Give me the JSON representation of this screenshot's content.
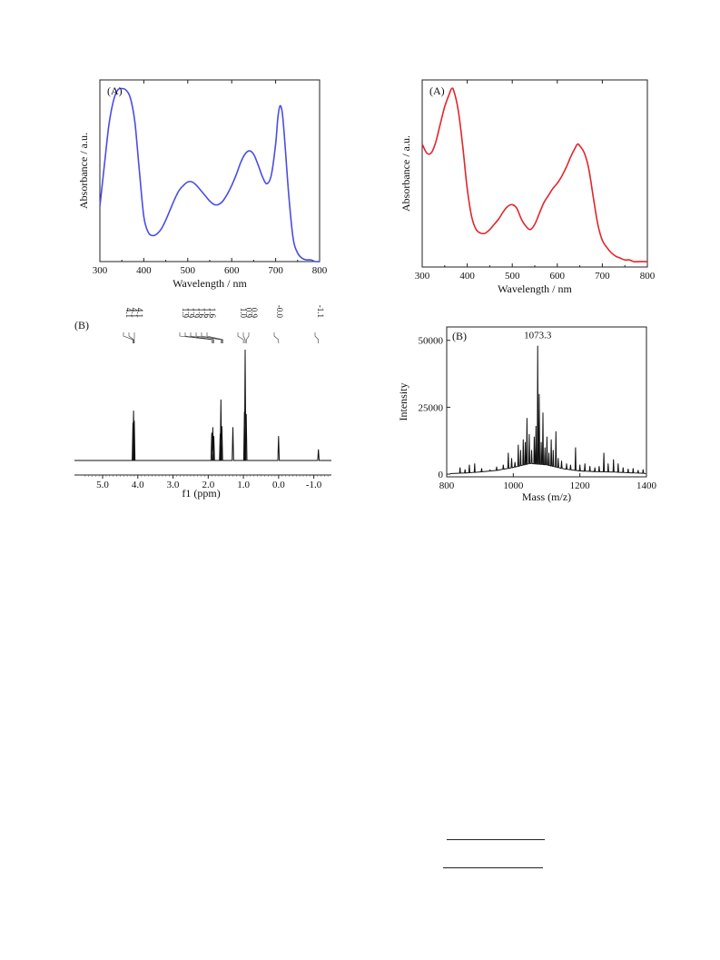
{
  "chart_data": [
    {
      "type": "line",
      "panel_label": "(A)",
      "xlabel": "Wavelength / nm",
      "ylabel": "Absorbance / a.u.",
      "xlim": [
        300,
        800
      ],
      "ylim": [
        0,
        1.05
      ],
      "xticks": [
        300,
        400,
        500,
        600,
        700,
        800
      ],
      "y_tick_labels_shown": false,
      "grid": false,
      "color": "#4b4ce6",
      "series": [
        {
          "x": [
            300,
            310,
            320,
            330,
            340,
            350,
            360,
            370,
            380,
            390,
            400,
            410,
            420,
            430,
            440,
            450,
            460,
            470,
            480,
            490,
            500,
            510,
            520,
            530,
            540,
            550,
            560,
            570,
            580,
            590,
            600,
            610,
            620,
            630,
            640,
            650,
            660,
            670,
            680,
            690,
            700,
            705,
            710,
            715,
            720,
            730,
            740,
            750,
            760,
            770,
            780,
            790,
            800
          ],
          "y": [
            0.32,
            0.55,
            0.78,
            0.92,
            0.99,
            1.0,
            0.99,
            0.94,
            0.8,
            0.52,
            0.26,
            0.17,
            0.15,
            0.16,
            0.19,
            0.24,
            0.3,
            0.36,
            0.41,
            0.44,
            0.46,
            0.46,
            0.44,
            0.41,
            0.38,
            0.35,
            0.33,
            0.33,
            0.35,
            0.39,
            0.44,
            0.5,
            0.57,
            0.62,
            0.64,
            0.62,
            0.56,
            0.49,
            0.45,
            0.5,
            0.68,
            0.83,
            0.9,
            0.86,
            0.72,
            0.38,
            0.13,
            0.05,
            0.02,
            0.01,
            0.01,
            0.0,
            0.0
          ]
        }
      ]
    },
    {
      "type": "line",
      "panel_label": "(A)",
      "xlabel": "Wavelength / nm",
      "ylabel": "Absorbance / a.u.",
      "xlim": [
        300,
        800
      ],
      "ylim": [
        0,
        1.05
      ],
      "xticks": [
        300,
        400,
        500,
        600,
        700,
        800
      ],
      "y_tick_labels_shown": false,
      "grid": false,
      "color": "#e2252b",
      "series": [
        {
          "x": [
            300,
            310,
            320,
            330,
            340,
            350,
            360,
            365,
            370,
            380,
            390,
            400,
            410,
            420,
            430,
            440,
            450,
            460,
            470,
            480,
            490,
            500,
            510,
            520,
            530,
            540,
            550,
            560,
            570,
            580,
            590,
            600,
            610,
            620,
            630,
            640,
            645,
            650,
            660,
            670,
            680,
            690,
            700,
            710,
            720,
            730,
            740,
            750,
            760,
            770,
            780,
            790,
            800
          ],
          "y": [
            0.69,
            0.64,
            0.64,
            0.7,
            0.8,
            0.9,
            0.97,
            1.0,
            0.99,
            0.88,
            0.68,
            0.44,
            0.28,
            0.21,
            0.19,
            0.19,
            0.21,
            0.24,
            0.27,
            0.31,
            0.34,
            0.35,
            0.33,
            0.27,
            0.23,
            0.21,
            0.24,
            0.3,
            0.36,
            0.4,
            0.44,
            0.47,
            0.51,
            0.56,
            0.62,
            0.67,
            0.69,
            0.68,
            0.64,
            0.55,
            0.39,
            0.24,
            0.15,
            0.11,
            0.08,
            0.06,
            0.05,
            0.04,
            0.04,
            0.03,
            0.03,
            0.03,
            0.03
          ]
        }
      ]
    },
    {
      "type": "line",
      "panel_label": "(B)",
      "xlabel": "f1 (ppm)",
      "xlim": [
        5.8,
        -1.5
      ],
      "xticks": [
        5.0,
        4.0,
        3.0,
        2.0,
        1.0,
        0.0,
        -1.0
      ],
      "xtick_labels": [
        "5.0",
        "4.0",
        "3.0",
        "2.0",
        "1.0",
        "0.0",
        "-1.0"
      ],
      "reversed_x": true,
      "grid": false,
      "color": "#111111",
      "peak_labels": [
        {
          "text": "4.1",
          "ppm": 4.14
        },
        {
          "text": "4.1",
          "ppm": 4.12
        },
        {
          "text": "4.1",
          "ppm": 4.1
        },
        {
          "text": "1.9",
          "ppm": 1.9
        },
        {
          "text": "1.9",
          "ppm": 1.87
        },
        {
          "text": "1.9",
          "ppm": 1.84
        },
        {
          "text": "1.6",
          "ppm": 1.64
        },
        {
          "text": "1.6",
          "ppm": 1.61
        },
        {
          "text": "1.6",
          "ppm": 1.58
        },
        {
          "text": "1.0",
          "ppm": 1.0
        },
        {
          "text": "0.9",
          "ppm": 0.95
        },
        {
          "text": "0.9",
          "ppm": 0.92
        },
        {
          "text": "-0.0",
          "ppm": 0.0
        },
        {
          "text": "-1.1",
          "ppm": -1.13
        }
      ],
      "peaks": [
        {
          "ppm": 4.14,
          "height": 0.34
        },
        {
          "ppm": 4.12,
          "height": 0.45
        },
        {
          "ppm": 4.1,
          "height": 0.36
        },
        {
          "ppm": 1.9,
          "height": 0.25
        },
        {
          "ppm": 1.87,
          "height": 0.3
        },
        {
          "ppm": 1.84,
          "height": 0.22
        },
        {
          "ppm": 1.66,
          "height": 0.24
        },
        {
          "ppm": 1.64,
          "height": 0.55
        },
        {
          "ppm": 1.61,
          "height": 0.31
        },
        {
          "ppm": 1.3,
          "height": 0.3
        },
        {
          "ppm": 0.97,
          "height": 0.44
        },
        {
          "ppm": 0.95,
          "height": 1.0
        },
        {
          "ppm": 0.92,
          "height": 0.42
        },
        {
          "ppm": 0.0,
          "height": 0.22
        },
        {
          "ppm": -1.13,
          "height": 0.1
        }
      ]
    },
    {
      "type": "line",
      "panel_label": "(B)",
      "xlabel": "Mass (m/z)",
      "ylabel": "Intensity",
      "xlim": [
        800,
        1400
      ],
      "ylim": [
        -1000,
        55000
      ],
      "xticks": [
        800,
        1000,
        1200,
        1400
      ],
      "yticks": [
        0,
        25000,
        50000
      ],
      "grid": false,
      "color": "#111111",
      "annotations": [
        {
          "text": "1073.3",
          "x": 1073.3,
          "y": 48000
        }
      ],
      "peaks": [
        {
          "x": 840,
          "y": 2500
        },
        {
          "x": 855,
          "y": 1800
        },
        {
          "x": 868,
          "y": 3500
        },
        {
          "x": 884,
          "y": 4000
        },
        {
          "x": 905,
          "y": 2200
        },
        {
          "x": 930,
          "y": 1500
        },
        {
          "x": 950,
          "y": 2800
        },
        {
          "x": 970,
          "y": 3500
        },
        {
          "x": 985,
          "y": 8000
        },
        {
          "x": 995,
          "y": 6000
        },
        {
          "x": 1005,
          "y": 4500
        },
        {
          "x": 1015,
          "y": 11000
        },
        {
          "x": 1022,
          "y": 9000
        },
        {
          "x": 1030,
          "y": 13000
        },
        {
          "x": 1036,
          "y": 12000
        },
        {
          "x": 1041,
          "y": 21000
        },
        {
          "x": 1048,
          "y": 15000
        },
        {
          "x": 1055,
          "y": 9000
        },
        {
          "x": 1063,
          "y": 14000
        },
        {
          "x": 1068,
          "y": 18000
        },
        {
          "x": 1073.3,
          "y": 48000
        },
        {
          "x": 1078,
          "y": 30000
        },
        {
          "x": 1084,
          "y": 12000
        },
        {
          "x": 1089,
          "y": 23000
        },
        {
          "x": 1095,
          "y": 10000
        },
        {
          "x": 1101,
          "y": 14000
        },
        {
          "x": 1107,
          "y": 8000
        },
        {
          "x": 1114,
          "y": 13000
        },
        {
          "x": 1120,
          "y": 9000
        },
        {
          "x": 1128,
          "y": 16000
        },
        {
          "x": 1135,
          "y": 6000
        },
        {
          "x": 1145,
          "y": 5000
        },
        {
          "x": 1160,
          "y": 4000
        },
        {
          "x": 1172,
          "y": 3500
        },
        {
          "x": 1187,
          "y": 10000
        },
        {
          "x": 1200,
          "y": 3500
        },
        {
          "x": 1215,
          "y": 4000
        },
        {
          "x": 1230,
          "y": 3000
        },
        {
          "x": 1245,
          "y": 2500
        },
        {
          "x": 1258,
          "y": 3000
        },
        {
          "x": 1272,
          "y": 8000
        },
        {
          "x": 1285,
          "y": 4000
        },
        {
          "x": 1301,
          "y": 5500
        },
        {
          "x": 1315,
          "y": 4000
        },
        {
          "x": 1330,
          "y": 2500
        },
        {
          "x": 1345,
          "y": 2000
        },
        {
          "x": 1360,
          "y": 2200
        },
        {
          "x": 1375,
          "y": 1500
        },
        {
          "x": 1390,
          "y": 1800
        }
      ]
    }
  ],
  "colors": {
    "uv_blue": "#4b4ce6",
    "uv_red": "#e2252b",
    "ink": "#111111"
  }
}
